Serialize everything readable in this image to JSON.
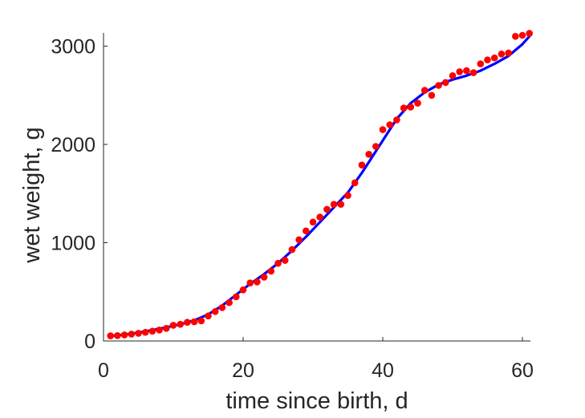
{
  "chart_data": {
    "type": "scatter",
    "xlabel": "time since birth, d",
    "ylabel": "wet weight, g",
    "xlim": [
      0,
      61
    ],
    "ylim": [
      0,
      3130
    ],
    "xticks": [
      0,
      20,
      40,
      60
    ],
    "yticks": [
      0,
      1000,
      2000,
      3000
    ],
    "grid": false,
    "colors": {
      "points": "#ff0000",
      "fit": "#0000ff",
      "axis": "#262626"
    },
    "series": [
      {
        "kind": "points",
        "x": [
          1,
          2,
          3,
          4,
          5,
          6,
          7,
          8,
          9,
          10,
          11,
          12,
          13,
          14,
          15,
          16,
          17,
          18,
          19,
          20,
          21,
          22,
          23,
          24,
          25,
          26,
          27,
          28,
          29,
          30,
          31,
          32,
          33,
          34,
          35,
          36,
          37,
          38,
          39,
          40,
          41,
          42,
          43,
          44,
          45,
          46,
          47,
          48,
          49,
          50,
          51,
          52,
          53,
          54,
          55,
          56,
          57,
          58,
          59,
          60,
          61
        ],
        "y": [
          52,
          55,
          62,
          70,
          78,
          88,
          100,
          112,
          128,
          160,
          170,
          190,
          195,
          205,
          255,
          300,
          340,
          390,
          450,
          520,
          590,
          600,
          650,
          710,
          790,
          820,
          930,
          1030,
          1120,
          1210,
          1260,
          1340,
          1390,
          1390,
          1480,
          1610,
          1790,
          1900,
          1980,
          2150,
          2200,
          2250,
          2370,
          2380,
          2420,
          2550,
          2500,
          2600,
          2630,
          2700,
          2740,
          2750,
          2730,
          2820,
          2860,
          2880,
          2920,
          2930,
          3100,
          3110,
          3130
        ]
      },
      {
        "kind": "line",
        "x": [
          1,
          3,
          5,
          7,
          9,
          11,
          13,
          15,
          17,
          19,
          21,
          23,
          25,
          27,
          29,
          31,
          33,
          35,
          36,
          37,
          38,
          39,
          40,
          41,
          42,
          43,
          44,
          46,
          48,
          50,
          52,
          54,
          56,
          58,
          60,
          61
        ],
        "y": [
          52,
          64,
          85,
          110,
          140,
          170,
          210,
          270,
          360,
          470,
          580,
          680,
          790,
          920,
          1060,
          1210,
          1360,
          1510,
          1610,
          1710,
          1820,
          1930,
          2040,
          2150,
          2260,
          2340,
          2420,
          2530,
          2610,
          2660,
          2700,
          2750,
          2820,
          2900,
          3020,
          3100
        ]
      }
    ]
  }
}
